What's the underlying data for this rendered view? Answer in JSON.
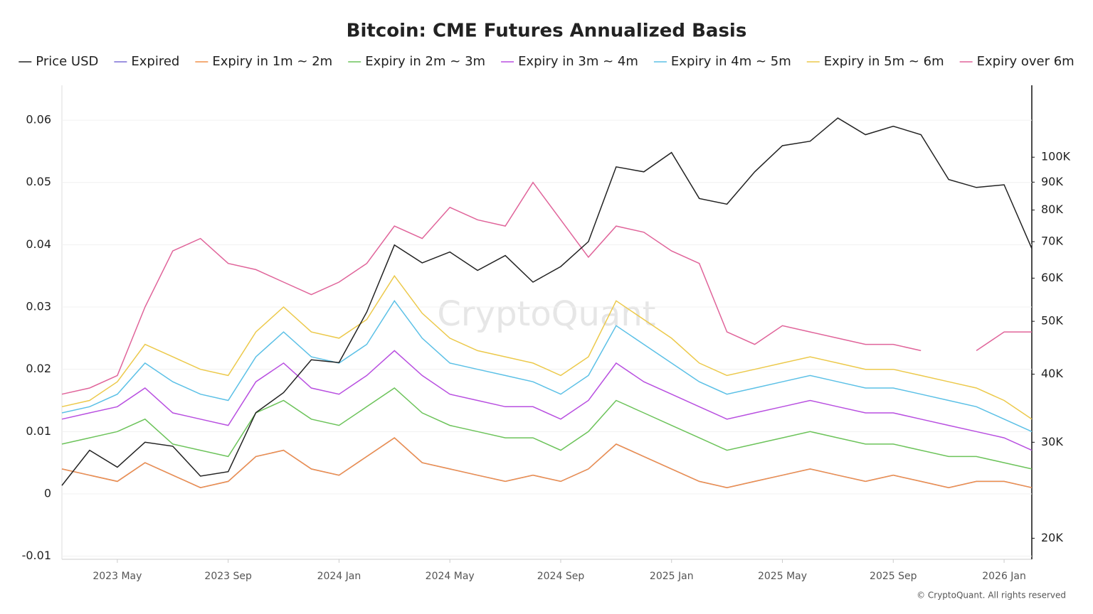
{
  "chart_data": {
    "type": "line",
    "title": "Bitcoin: CME Futures Annualized Basis",
    "watermark": "CryptoQuant",
    "footer": "© CryptoQuant. All rights reserved",
    "x": [
      "2023 Mar",
      "2023 Apr",
      "2023 May",
      "2023 Jun",
      "2023 Jul",
      "2023 Aug",
      "2023 Sep",
      "2023 Oct",
      "2023 Nov",
      "2023 Dec",
      "2024 Jan",
      "2024 Feb",
      "2024 Mar",
      "2024 Apr",
      "2024 May",
      "2024 Jun",
      "2024 Jul",
      "2024 Aug",
      "2024 Sep",
      "2024 Oct",
      "2024 Nov",
      "2024 Dec",
      "2025 Jan",
      "2025 Feb",
      "2025 Mar",
      "2025 Apr",
      "2025 May",
      "2025 Jun",
      "2025 Jul",
      "2025 Aug",
      "2025 Sep",
      "2025 Oct",
      "2025 Nov",
      "2025 Dec",
      "2026 Jan",
      "2026 Feb"
    ],
    "xlim": [
      "2023 Mar",
      "2026 Feb"
    ],
    "xticks": [
      "2023 May",
      "2023 Sep",
      "2024 Jan",
      "2024 May",
      "2024 Sep",
      "2025 Jan",
      "2025 May",
      "2025 Sep",
      "2026 Jan"
    ],
    "ylim": [
      -0.0105,
      0.0656
    ],
    "yticks": [
      -0.01,
      0,
      0.01,
      0.02,
      0.03,
      0.04,
      0.05,
      0.06
    ],
    "y2lim": [
      18300,
      135500
    ],
    "y2log": true,
    "y2ticks": [
      {
        "value": 20000,
        "label": "20K"
      },
      {
        "value": 30000,
        "label": "30K"
      },
      {
        "value": 40000,
        "label": "40K"
      },
      {
        "value": 50000,
        "label": "50K"
      },
      {
        "value": 60000,
        "label": "60K"
      },
      {
        "value": 70000,
        "label": "70K"
      },
      {
        "value": 80000,
        "label": "80K"
      },
      {
        "value": 90000,
        "label": "90K"
      },
      {
        "value": 100000,
        "label": "100K"
      }
    ],
    "grid": true,
    "series": [
      {
        "name": "Price USD",
        "color": "#222222",
        "axis": "y2",
        "values": [
          25000,
          29000,
          27000,
          30000,
          29500,
          26000,
          26500,
          34000,
          37000,
          42500,
          42000,
          52000,
          69000,
          64000,
          67000,
          62000,
          66000,
          59000,
          63000,
          70000,
          96000,
          94000,
          102000,
          84000,
          82000,
          94000,
          105000,
          107000,
          118000,
          110000,
          114000,
          110000,
          91000,
          88000,
          89000,
          68000
        ]
      },
      {
        "name": "Expired",
        "color": "#7b6fd6",
        "values": [
          0.004,
          0.003,
          0.002,
          0.005,
          0.003,
          0.001,
          0.002,
          0.006,
          0.007,
          0.004,
          0.003,
          0.006,
          0.009,
          0.005,
          0.004,
          0.003,
          0.002,
          0.003,
          0.002,
          0.004,
          0.008,
          0.006,
          0.004,
          0.002,
          0.001,
          0.002,
          0.003,
          0.004,
          0.003,
          0.002,
          0.003,
          0.002,
          0.001,
          0.002,
          0.002,
          0.001
        ]
      },
      {
        "name": "Expiry in 1m ~ 2m",
        "color": "#f0914a",
        "values": [
          0.004,
          0.003,
          0.002,
          0.005,
          0.003,
          0.001,
          0.002,
          0.006,
          0.007,
          0.004,
          0.003,
          0.006,
          0.009,
          0.005,
          0.004,
          0.003,
          0.002,
          0.003,
          0.002,
          0.004,
          0.008,
          0.006,
          0.004,
          0.002,
          0.001,
          0.002,
          0.003,
          0.004,
          0.003,
          0.002,
          0.003,
          0.002,
          0.001,
          0.002,
          0.002,
          0.001
        ]
      },
      {
        "name": "Expiry in 2m ~ 3m",
        "color": "#6cc35a",
        "values": [
          0.008,
          0.009,
          0.01,
          0.012,
          0.008,
          0.007,
          0.006,
          0.013,
          0.015,
          0.012,
          0.011,
          0.014,
          0.017,
          0.013,
          0.011,
          0.01,
          0.009,
          0.009,
          0.007,
          0.01,
          0.015,
          0.013,
          0.011,
          0.009,
          0.007,
          0.008,
          0.009,
          0.01,
          0.009,
          0.008,
          0.008,
          0.007,
          0.006,
          0.006,
          0.005,
          0.004
        ]
      },
      {
        "name": "Expiry in 3m ~ 4m",
        "color": "#b84fe0",
        "values": [
          0.012,
          0.013,
          0.014,
          0.017,
          0.013,
          0.012,
          0.011,
          0.018,
          0.021,
          0.017,
          0.016,
          0.019,
          0.023,
          0.019,
          0.016,
          0.015,
          0.014,
          0.014,
          0.012,
          0.015,
          0.021,
          0.018,
          0.016,
          0.014,
          0.012,
          0.013,
          0.014,
          0.015,
          0.014,
          0.013,
          0.013,
          0.012,
          0.011,
          0.01,
          0.009,
          0.007
        ]
      },
      {
        "name": "Expiry in 4m ~ 5m",
        "color": "#5bc0e6",
        "values": [
          0.013,
          0.014,
          0.016,
          0.021,
          0.018,
          0.016,
          0.015,
          0.022,
          0.026,
          0.022,
          0.021,
          0.024,
          0.031,
          0.025,
          0.021,
          0.02,
          0.019,
          0.018,
          0.016,
          0.019,
          0.027,
          0.024,
          0.021,
          0.018,
          0.016,
          0.017,
          0.018,
          0.019,
          0.018,
          0.017,
          0.017,
          0.016,
          0.015,
          0.014,
          0.012,
          0.01
        ]
      },
      {
        "name": "Expiry in 5m ~ 6m",
        "color": "#ecc94b",
        "values": [
          0.014,
          0.015,
          0.018,
          0.024,
          0.022,
          0.02,
          0.019,
          0.026,
          0.03,
          0.026,
          0.025,
          0.028,
          0.035,
          0.029,
          0.025,
          0.023,
          0.022,
          0.021,
          0.019,
          0.022,
          0.031,
          0.028,
          0.025,
          0.021,
          0.019,
          0.02,
          0.021,
          0.022,
          0.021,
          0.02,
          0.02,
          0.019,
          0.018,
          0.017,
          0.015,
          0.012
        ]
      },
      {
        "name": "Expiry over 6m",
        "color": "#e0649a",
        "values": [
          0.016,
          0.017,
          0.019,
          0.03,
          0.039,
          0.041,
          0.037,
          0.036,
          0.034,
          0.032,
          0.034,
          0.037,
          0.043,
          0.041,
          0.046,
          0.044,
          0.043,
          0.05,
          0.044,
          0.038,
          0.043,
          0.042,
          0.039,
          0.037,
          0.026,
          0.024,
          0.027,
          0.026,
          0.025,
          0.024,
          0.024,
          0.023,
          null,
          0.023,
          0.026,
          0.026
        ]
      }
    ]
  }
}
